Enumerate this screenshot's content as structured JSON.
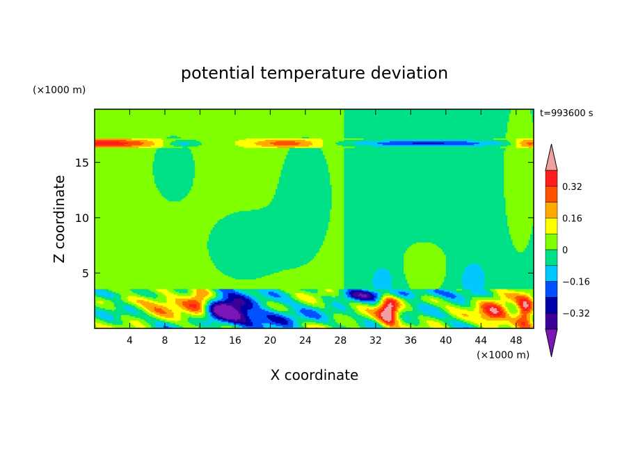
{
  "chart_data": {
    "type": "heatmap",
    "title": "potential temperature deviation",
    "xlabel": "X coordinate",
    "ylabel": "Z coordinate",
    "x_unit": "(×1000 m)",
    "y_unit": "(×1000 m)",
    "time_label": "t=993600 s",
    "xlim": [
      0,
      50
    ],
    "ylim": [
      0,
      19.8
    ],
    "x_ticks": [
      4,
      8,
      12,
      16,
      20,
      24,
      28,
      32,
      36,
      40,
      44,
      48
    ],
    "y_ticks": [
      5,
      10,
      15
    ],
    "colorbar": {
      "extend": "both",
      "levels": [
        -0.4,
        -0.32,
        -0.24,
        -0.16,
        -0.08,
        0,
        0.08,
        0.16,
        0.24,
        0.32,
        0.4
      ],
      "tick_labels": [
        "0.32",
        "0.16",
        "0",
        "−0.16",
        "−0.32"
      ],
      "tick_values": [
        0.32,
        0.16,
        0,
        -0.16,
        -0.32
      ],
      "colors": {
        "under": "#7a17b8",
        "bins": [
          "#3a0098",
          "#0000a8",
          "#0050ff",
          "#00c8ff",
          "#00e187",
          "#80ff00",
          "#ffff00",
          "#ffa800",
          "#ff5000",
          "#ff1e1e"
        ],
        "over": "#f0a0a0"
      }
    },
    "background_regions": [
      {
        "desc": "upper-right slightly negative",
        "x": [
          28,
          50
        ],
        "z": [
          3.6,
          19.8
        ],
        "value": -0.04
      },
      {
        "desc": "upper-left slightly positive",
        "x": [
          0,
          28
        ],
        "z": [
          3.6,
          19.8
        ],
        "value": 0.04
      }
    ]
  }
}
